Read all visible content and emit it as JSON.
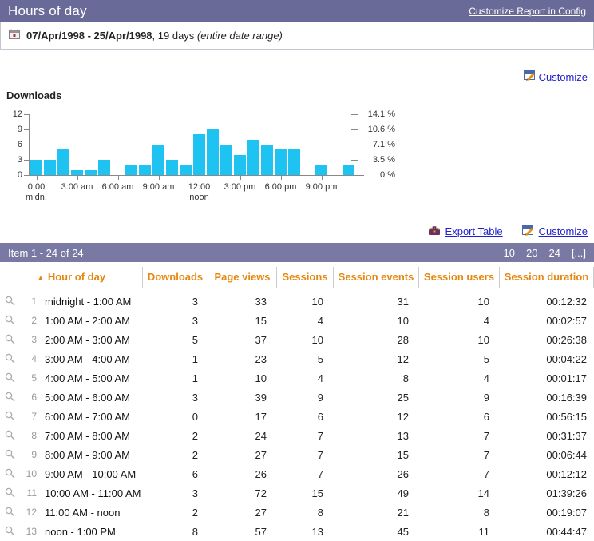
{
  "title_bar": {
    "title": "Hours of day",
    "config_link": "Customize Report in Config"
  },
  "date_bar": {
    "range": "07/Apr/1998 - 25/Apr/1998",
    "days": ", 19 days ",
    "note": "(entire date range)"
  },
  "chart_section": {
    "customize_label": "Customize",
    "title": "Downloads"
  },
  "chart_data": {
    "type": "bar",
    "title": "Downloads",
    "x_hours": [
      0,
      1,
      2,
      3,
      4,
      5,
      6,
      7,
      8,
      9,
      10,
      11,
      12,
      13,
      14,
      15,
      16,
      17,
      18,
      19,
      20,
      21,
      22,
      23
    ],
    "values": [
      3,
      3,
      5,
      1,
      1,
      3,
      0,
      2,
      2,
      6,
      3,
      2,
      8,
      9,
      6,
      4,
      7,
      6,
      5,
      5,
      0,
      2,
      0,
      2
    ],
    "ylim": [
      0,
      12
    ],
    "y_ticks_left": [
      0,
      3,
      6,
      9,
      12
    ],
    "y_ticks_right": [
      "0 %",
      "3.5 %",
      "7.1 %",
      "10.6 %",
      "14.1 %"
    ],
    "x_ticks": [
      {
        "at": 0,
        "label": "0:00",
        "sub": "midn."
      },
      {
        "at": 3,
        "label": "3:00 am",
        "sub": ""
      },
      {
        "at": 6,
        "label": "6:00 am",
        "sub": ""
      },
      {
        "at": 9,
        "label": "9:00 am",
        "sub": ""
      },
      {
        "at": 12,
        "label": "12:00",
        "sub": "noon"
      },
      {
        "at": 15,
        "label": "3:00 pm",
        "sub": ""
      },
      {
        "at": 18,
        "label": "6:00 pm",
        "sub": ""
      },
      {
        "at": 21,
        "label": "9:00 pm",
        "sub": ""
      }
    ],
    "bar_color": "#1fc3f2",
    "grid": false,
    "legend": false
  },
  "table_section": {
    "export_label": "Export Table",
    "customize_label": "Customize",
    "item_range": "Item 1 - 24 of 24",
    "pagination": [
      "10",
      "20",
      "24",
      "[...]"
    ],
    "sort_indicator": "▲",
    "columns": [
      "Hour of day",
      "Downloads",
      "Page views",
      "Sessions",
      "Session events",
      "Session users",
      "Session duration"
    ],
    "rows": [
      {
        "n": "1",
        "hour": "midnight - 1:00 AM",
        "downloads": "3",
        "page_views": "33",
        "sessions": "10",
        "session_events": "31",
        "session_users": "10",
        "duration": "00:12:32"
      },
      {
        "n": "2",
        "hour": "1:00 AM - 2:00 AM",
        "downloads": "3",
        "page_views": "15",
        "sessions": "4",
        "session_events": "10",
        "session_users": "4",
        "duration": "00:02:57"
      },
      {
        "n": "3",
        "hour": "2:00 AM - 3:00 AM",
        "downloads": "5",
        "page_views": "37",
        "sessions": "10",
        "session_events": "28",
        "session_users": "10",
        "duration": "00:26:38"
      },
      {
        "n": "4",
        "hour": "3:00 AM - 4:00 AM",
        "downloads": "1",
        "page_views": "23",
        "sessions": "5",
        "session_events": "12",
        "session_users": "5",
        "duration": "00:04:22"
      },
      {
        "n": "5",
        "hour": "4:00 AM - 5:00 AM",
        "downloads": "1",
        "page_views": "10",
        "sessions": "4",
        "session_events": "8",
        "session_users": "4",
        "duration": "00:01:17"
      },
      {
        "n": "6",
        "hour": "5:00 AM - 6:00 AM",
        "downloads": "3",
        "page_views": "39",
        "sessions": "9",
        "session_events": "25",
        "session_users": "9",
        "duration": "00:16:39"
      },
      {
        "n": "7",
        "hour": "6:00 AM - 7:00 AM",
        "downloads": "0",
        "page_views": "17",
        "sessions": "6",
        "session_events": "12",
        "session_users": "6",
        "duration": "00:56:15"
      },
      {
        "n": "8",
        "hour": "7:00 AM - 8:00 AM",
        "downloads": "2",
        "page_views": "24",
        "sessions": "7",
        "session_events": "13",
        "session_users": "7",
        "duration": "00:31:37"
      },
      {
        "n": "9",
        "hour": "8:00 AM - 9:00 AM",
        "downloads": "2",
        "page_views": "27",
        "sessions": "7",
        "session_events": "15",
        "session_users": "7",
        "duration": "00:06:44"
      },
      {
        "n": "10",
        "hour": "9:00 AM - 10:00 AM",
        "downloads": "6",
        "page_views": "26",
        "sessions": "7",
        "session_events": "26",
        "session_users": "7",
        "duration": "00:12:12"
      },
      {
        "n": "11",
        "hour": "10:00 AM - 11:00 AM",
        "downloads": "3",
        "page_views": "72",
        "sessions": "15",
        "session_events": "49",
        "session_users": "14",
        "duration": "01:39:26"
      },
      {
        "n": "12",
        "hour": "11:00 AM - noon",
        "downloads": "2",
        "page_views": "27",
        "sessions": "8",
        "session_events": "21",
        "session_users": "8",
        "duration": "00:19:07"
      },
      {
        "n": "13",
        "hour": "noon - 1:00 PM",
        "downloads": "8",
        "page_views": "57",
        "sessions": "13",
        "session_events": "45",
        "session_users": "11",
        "duration": "00:44:47"
      }
    ]
  },
  "colors": {
    "title_bar_bg": "#6a6a99",
    "item_bar_bg": "#7979a3",
    "header_orange": "#e6870f",
    "bar_cyan": "#1fc3f2",
    "link_blue": "#2121cc"
  }
}
